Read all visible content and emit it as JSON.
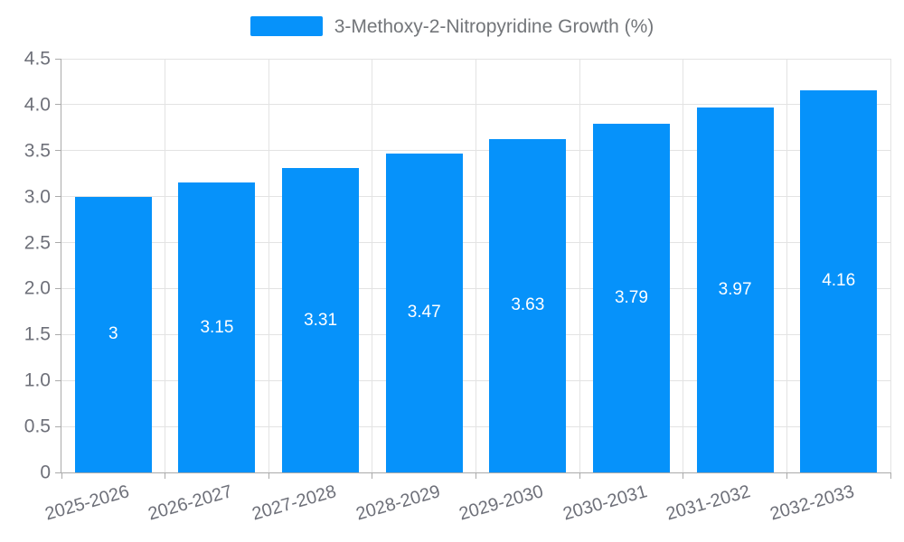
{
  "chart_data": {
    "type": "bar",
    "title": "3-Methoxy-2-Nitropyridine Growth (%)",
    "legend": {
      "label": "3-Methoxy-2-Nitropyridine Growth (%)",
      "position": "top"
    },
    "categories": [
      "2025-2026",
      "2026-2027",
      "2027-2028",
      "2028-2029",
      "2029-2030",
      "2030-2031",
      "2031-2032",
      "2032-2033"
    ],
    "values": [
      3,
      3.15,
      3.31,
      3.47,
      3.63,
      3.79,
      3.97,
      4.16
    ],
    "value_labels": [
      "3",
      "3.15",
      "3.31",
      "3.47",
      "3.63",
      "3.79",
      "3.97",
      "4.16"
    ],
    "xlabel": "",
    "ylabel": "",
    "ylim": [
      0,
      4.5
    ],
    "yticks": [
      0,
      0.5,
      1.0,
      1.5,
      2.0,
      2.5,
      3.0,
      3.5,
      4.0,
      4.5
    ],
    "ytick_labels": [
      "0",
      "0.5",
      "1.0",
      "1.5",
      "2.0",
      "2.5",
      "3.0",
      "3.5",
      "4.0",
      "4.5"
    ],
    "grid": "on",
    "colors": {
      "bar": "#0692fa",
      "value_label": "#ffffff",
      "grid_line": "#e3e3e3",
      "axis_line": "#aaaaaa",
      "tick_label": "#6e7079",
      "legend_text": "#73767a",
      "background": "#ffffff"
    }
  }
}
